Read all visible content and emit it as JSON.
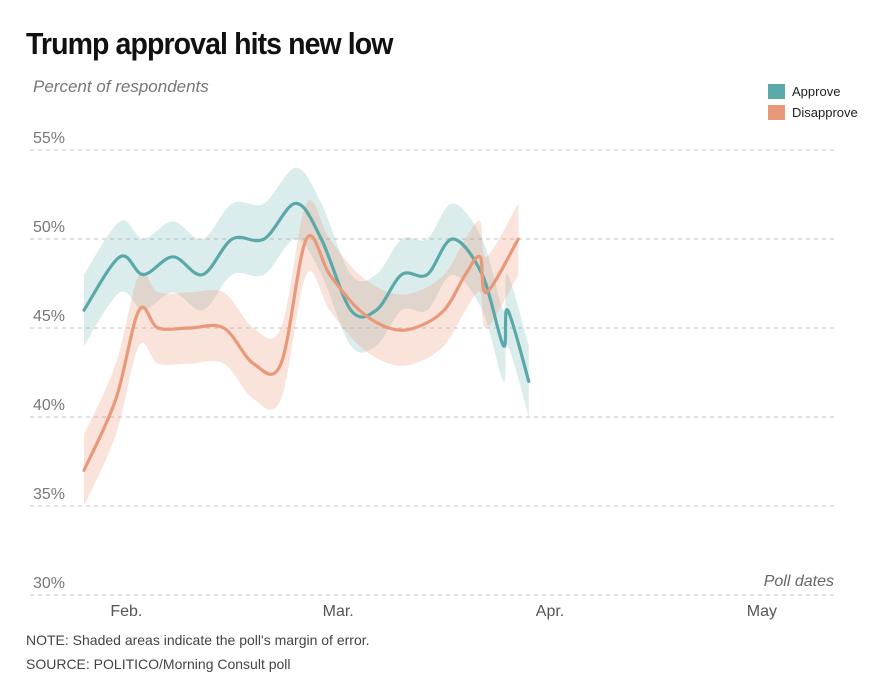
{
  "chart_data": {
    "type": "line",
    "title": "Trump approval hits new low",
    "subtitle": "Percent of respondents",
    "xlabel": "Poll dates",
    "ylabel": "",
    "ylim": [
      30,
      55
    ],
    "y_ticks": [
      {
        "value": 55,
        "label": "55%"
      },
      {
        "value": 50,
        "label": "50%"
      },
      {
        "value": 45,
        "label": "45%"
      },
      {
        "value": 40,
        "label": "40%"
      },
      {
        "value": 35,
        "label": "35%"
      },
      {
        "value": 30,
        "label": "30%"
      }
    ],
    "x_tick_labels": [
      "Feb.",
      "Mar.",
      "Apr.",
      "May"
    ],
    "x_domain": [
      -0.2,
      3.35
    ],
    "x_tick_positions": [
      0.0,
      1.0,
      2.0,
      3.0
    ],
    "grid": true,
    "legend_position": "top-right",
    "margin_of_error": 2,
    "series": [
      {
        "name": "Approve",
        "color": "#5aa9a8",
        "points": [
          [
            -0.2,
            46
          ],
          [
            -0.03,
            49
          ],
          [
            0.08,
            48
          ],
          [
            0.22,
            49
          ],
          [
            0.36,
            48
          ],
          [
            0.5,
            50
          ],
          [
            0.65,
            50
          ],
          [
            0.8,
            52
          ],
          [
            0.92,
            50
          ],
          [
            1.06,
            46
          ],
          [
            1.18,
            46
          ],
          [
            1.3,
            48
          ],
          [
            1.42,
            48
          ],
          [
            1.54,
            50
          ],
          [
            1.68,
            48
          ],
          [
            1.78,
            44
          ],
          [
            1.8,
            46
          ],
          [
            1.9,
            42
          ]
        ]
      },
      {
        "name": "Disapprove",
        "color": "#e9997a",
        "points": [
          [
            -0.2,
            37
          ],
          [
            -0.05,
            41
          ],
          [
            0.06,
            46
          ],
          [
            0.15,
            45
          ],
          [
            0.3,
            45
          ],
          [
            0.46,
            45
          ],
          [
            0.6,
            43
          ],
          [
            0.73,
            43
          ],
          [
            0.85,
            50
          ],
          [
            0.96,
            48
          ],
          [
            1.1,
            46
          ],
          [
            1.24,
            45
          ],
          [
            1.36,
            45
          ],
          [
            1.5,
            46
          ],
          [
            1.6,
            48
          ],
          [
            1.67,
            49
          ],
          [
            1.7,
            47
          ],
          [
            1.85,
            50
          ]
        ]
      }
    ]
  },
  "notes": {
    "note": "NOTE: Shaded areas indicate the poll's margin of error.",
    "source": "SOURCE: POLITICO/Morning Consult poll"
  }
}
